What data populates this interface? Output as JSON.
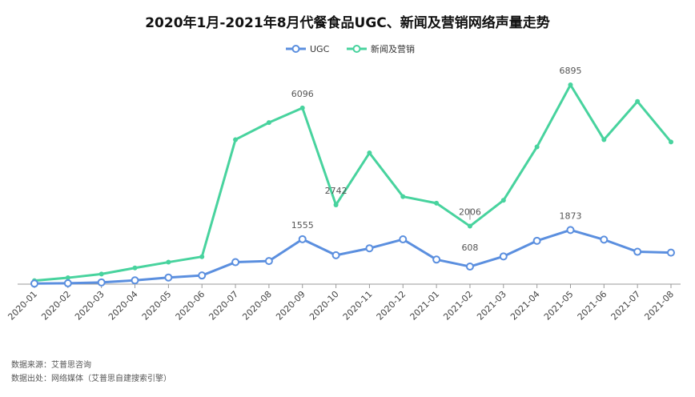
{
  "chart_data": {
    "type": "line",
    "title": "2020年1月-2021年8月代餐食品UGC、新闻及营销网络声量走势",
    "categories": [
      "2020-01",
      "2020-02",
      "2020-03",
      "2020-04",
      "2020-05",
      "2020-06",
      "2020-07",
      "2020-08",
      "2020-09",
      "2020-10",
      "2020-11",
      "2020-12",
      "2021-01",
      "2021-02",
      "2021-03",
      "2021-04",
      "2021-05",
      "2021-06",
      "2021-07",
      "2021-08"
    ],
    "series": [
      {
        "name": "UGC",
        "color": "#5b8fdf",
        "marker": "hollow-circle",
        "values": [
          20,
          30,
          60,
          130,
          230,
          300,
          760,
          800,
          1555,
          1000,
          1240,
          1550,
          850,
          608,
          960,
          1500,
          1873,
          1540,
          1120,
          1090
        ],
        "labels": {
          "8": "1555",
          "13": "608",
          "16": "1873"
        }
      },
      {
        "name": "新闻及营销",
        "color": "#48d39e",
        "marker": "dot",
        "values": [
          120,
          220,
          350,
          560,
          760,
          950,
          5000,
          5590,
          6096,
          2742,
          4540,
          3030,
          2800,
          2006,
          2900,
          4750,
          6895,
          5000,
          6320,
          4920
        ],
        "labels": {
          "8": "6096",
          "9": "2742",
          "13": "2006",
          "16": "6895"
        }
      }
    ],
    "ylim": [
      0,
      7200
    ],
    "grid": false,
    "legend_position": "top-center",
    "xlabel": "",
    "ylabel": ""
  },
  "footer": {
    "source": "数据来源：艾普思咨询",
    "origin": "数据出处：网络媒体（艾普思自建搜索引擎）"
  }
}
